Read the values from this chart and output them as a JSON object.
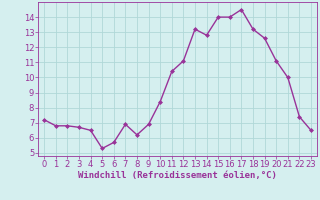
{
  "x": [
    0,
    1,
    2,
    3,
    4,
    5,
    6,
    7,
    8,
    9,
    10,
    11,
    12,
    13,
    14,
    15,
    16,
    17,
    18,
    19,
    20,
    21,
    22,
    23
  ],
  "y": [
    7.2,
    6.8,
    6.8,
    6.7,
    6.5,
    5.3,
    5.7,
    6.9,
    6.2,
    6.9,
    8.4,
    10.4,
    11.1,
    13.2,
    12.8,
    14.0,
    14.0,
    14.5,
    13.2,
    12.6,
    11.1,
    10.0,
    7.4,
    6.5
  ],
  "line_color": "#993399",
  "marker": "D",
  "marker_size": 2.0,
  "line_width": 1.0,
  "background_color": "#d5efef",
  "grid_color": "#b0d8d8",
  "xlabel": "Windchill (Refroidissement éolien,°C)",
  "xlabel_fontsize": 6.5,
  "tick_fontsize": 6.0,
  "xlim": [
    -0.5,
    23.5
  ],
  "ylim": [
    4.8,
    15.0
  ],
  "yticks": [
    5,
    6,
    7,
    8,
    9,
    10,
    11,
    12,
    13,
    14
  ],
  "xticks": [
    0,
    1,
    2,
    3,
    4,
    5,
    6,
    7,
    8,
    9,
    10,
    11,
    12,
    13,
    14,
    15,
    16,
    17,
    18,
    19,
    20,
    21,
    22,
    23
  ]
}
